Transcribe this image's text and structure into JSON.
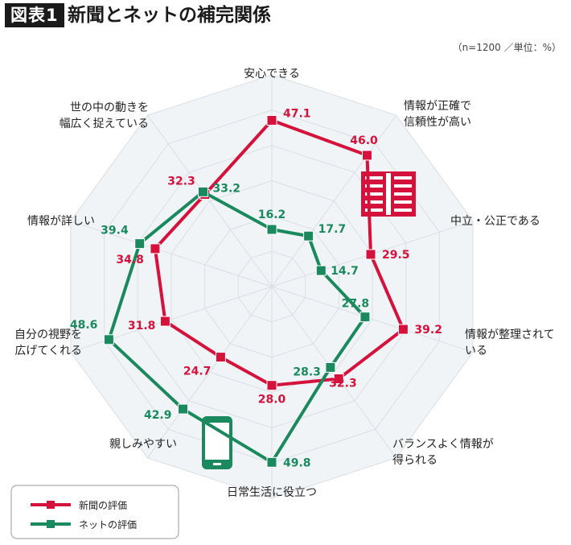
{
  "header": {
    "badge": "図表1",
    "title": "新聞とネットの補完関係"
  },
  "note": "（n=1200 ／単位：%）",
  "colors": {
    "news": "#d5123c",
    "net": "#1a8a5e",
    "grid": "#d9dfe5",
    "web_fill": "#f1f4f6"
  },
  "icons": {
    "news": "newspaper-icon",
    "net": "smartphone-icon"
  },
  "chart_data": {
    "type": "radar",
    "axes": [
      [
        "安心できる"
      ],
      [
        "情報が正確で",
        "信頼性が高い"
      ],
      [
        "中立・公正である"
      ],
      [
        "情報が整理されて",
        "いる"
      ],
      [
        "バランスよく情報が",
        "得られる"
      ],
      [
        "日常生活に役立つ"
      ],
      [
        "親しみやすい"
      ],
      [
        "自分の視野を",
        "広げてくれる"
      ],
      [
        "情報が詳しい"
      ],
      [
        "世の中の動きを",
        "幅広く捉えている"
      ]
    ],
    "rlim": [
      0,
      60
    ],
    "grid_levels": [
      10,
      20,
      30,
      40,
      50,
      60
    ],
    "grid": true,
    "legend_position": "bottom-left",
    "series": [
      {
        "name": "新聞の評価",
        "key": "news",
        "values": [
          47.1,
          46.0,
          29.5,
          39.2,
          32.3,
          28.0,
          24.7,
          31.8,
          34.8,
          32.3
        ]
      },
      {
        "name": "ネットの評価",
        "key": "net",
        "values": [
          16.2,
          17.7,
          14.7,
          27.8,
          28.3,
          49.8,
          42.9,
          48.6,
          39.4,
          33.2
        ]
      }
    ]
  }
}
